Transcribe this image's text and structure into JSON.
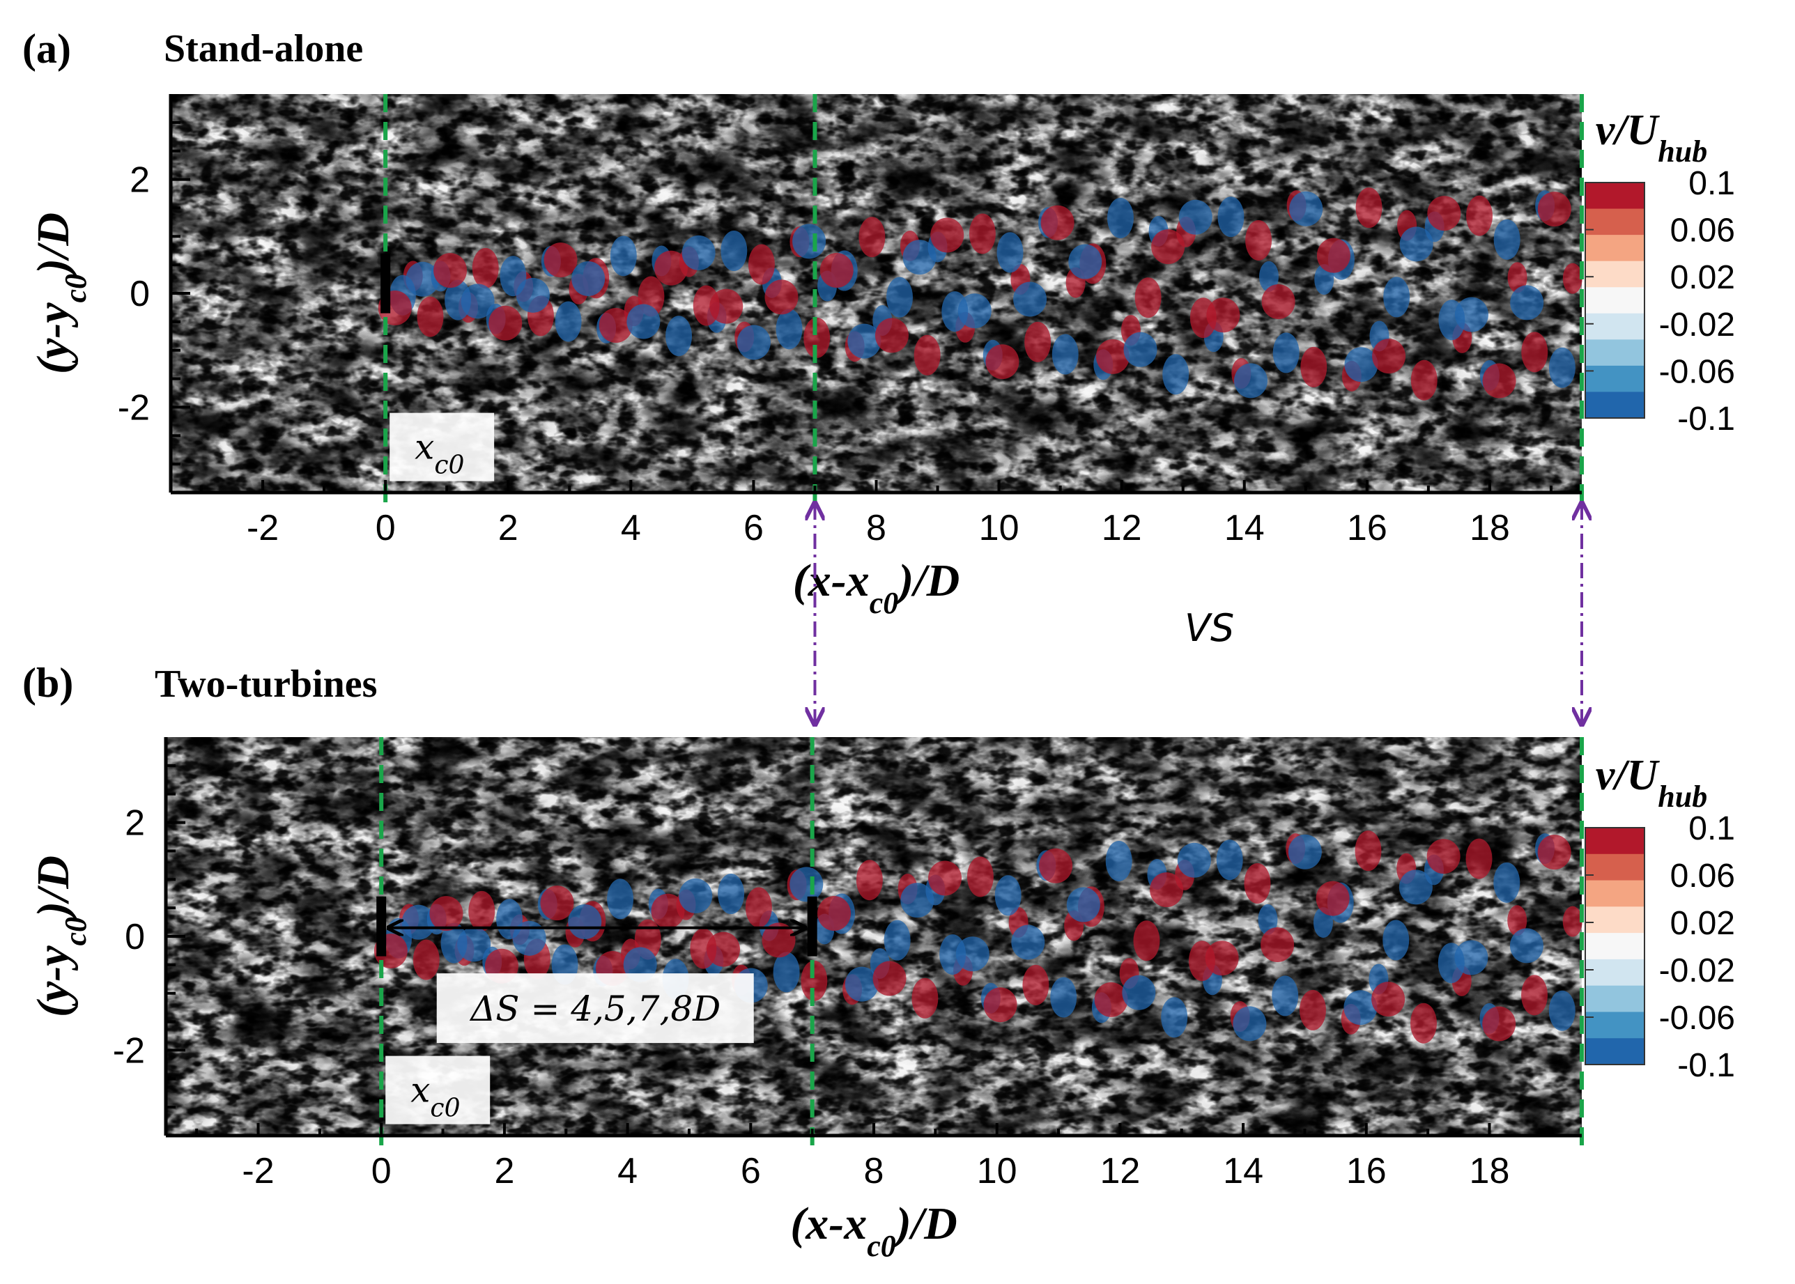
{
  "figure": {
    "panel_a": {
      "label": "(a)",
      "title": "Stand-alone"
    },
    "panel_b": {
      "label": "(b)",
      "title": "Two-turbines"
    },
    "vs_text": "VS",
    "xc0_label_base": "x",
    "xc0_label_sub": "c0",
    "spacing_label": "ΔS = 4,5,7,8D"
  },
  "chart_data": [
    {
      "type": "heatmap",
      "panel": "a",
      "title": "Stand-alone",
      "xlabel_main": "(x-x",
      "xlabel_sub": "c0",
      "xlabel_end": ")/D",
      "ylabel_main": "(y-y",
      "ylabel_sub": "c0",
      "ylabel_end": ")/D",
      "xlim": [
        -3.5,
        19.5
      ],
      "ylim": [
        -3.5,
        3.5
      ],
      "xticks": [
        -2,
        0,
        2,
        4,
        6,
        8,
        10,
        12,
        14,
        16,
        18
      ],
      "yticks": [
        -2,
        0,
        2
      ],
      "colorbar": {
        "title_main": "v/U",
        "title_sub": "hub",
        "ticks": [
          "0.1",
          "0.06",
          "0.02",
          "-0.02",
          "-0.06",
          "-0.1"
        ],
        "range": [
          -0.1,
          0.1
        ],
        "colors": [
          "#b2182b",
          "#d6604d",
          "#f4a582",
          "#fddbc7",
          "#f7f7f7",
          "#d1e5f0",
          "#92c5de",
          "#4393c3",
          "#2166ac"
        ]
      },
      "turbines": [
        {
          "x": 0,
          "y": 0
        }
      ],
      "markers_x": [
        0,
        7,
        19.5
      ]
    },
    {
      "type": "heatmap",
      "panel": "b",
      "title": "Two-turbines",
      "xlabel_main": "(x-x",
      "xlabel_sub": "c0",
      "xlabel_end": ")/D",
      "ylabel_main": "(y-y",
      "ylabel_sub": "c0",
      "ylabel_end": ")/D",
      "xlim": [
        -3.5,
        19.5
      ],
      "ylim": [
        -3.5,
        3.5
      ],
      "xticks": [
        -2,
        0,
        2,
        4,
        6,
        8,
        10,
        12,
        14,
        16,
        18
      ],
      "yticks": [
        -2,
        0,
        2
      ],
      "colorbar": {
        "title_main": "v/U",
        "title_sub": "hub",
        "ticks": [
          "0.1",
          "0.06",
          "0.02",
          "-0.02",
          "-0.06",
          "-0.1"
        ],
        "range": [
          -0.1,
          0.1
        ],
        "colors": [
          "#b2182b",
          "#d6604d",
          "#f4a582",
          "#fddbc7",
          "#f7f7f7",
          "#d1e5f0",
          "#92c5de",
          "#4393c3",
          "#2166ac"
        ]
      },
      "turbines": [
        {
          "x": 0,
          "y": 0
        },
        {
          "x": 7,
          "y": 0
        }
      ],
      "markers_x": [
        0,
        7,
        19.5
      ],
      "spacing": {
        "from": 0,
        "to": 7,
        "label": "ΔS = 4,5,7,8D"
      }
    }
  ]
}
